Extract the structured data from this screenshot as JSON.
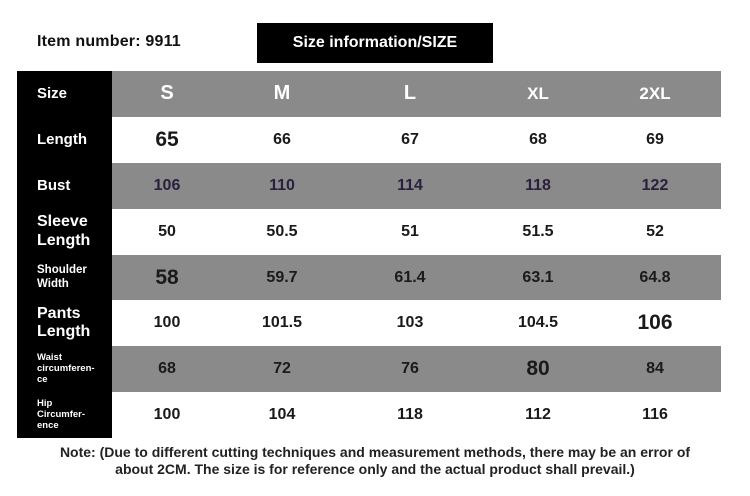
{
  "header": {
    "item_number": "Item number: 9911",
    "badge": "Size information/SIZE"
  },
  "table": {
    "header": {
      "label": "Size",
      "sizes": [
        "S",
        "M",
        "L",
        "XL",
        "2XL"
      ]
    },
    "rows": [
      {
        "label": "Length",
        "values": [
          "65",
          "66",
          "67",
          "68",
          "69"
        ]
      },
      {
        "label": "Bust",
        "values": [
          "106",
          "110",
          "114",
          "118",
          "122"
        ]
      },
      {
        "label": "Sleeve\nLength",
        "values": [
          "50",
          "50.5",
          "51",
          "51.5",
          "52"
        ]
      },
      {
        "label": "Shoulder\nWidth",
        "values": [
          "58",
          "59.7",
          "61.4",
          "63.1",
          "64.8"
        ]
      },
      {
        "label": "Pants\nLength",
        "values": [
          "100",
          "101.5",
          "103",
          "104.5",
          "106"
        ]
      },
      {
        "label": "Waist\ncircumferen-\nce",
        "values": [
          "68",
          "72",
          "76",
          "80",
          "84"
        ]
      },
      {
        "label": "Hip\nCircumfer-\nence",
        "values": [
          "100",
          "104",
          "118",
          "112",
          "116"
        ]
      }
    ]
  },
  "note": {
    "line1": "Note: (Due to different cutting techniques and measurement methods, there may be an error of",
    "line2": "about 2CM. The size is for reference only and the actual product shall prevail.)"
  }
}
